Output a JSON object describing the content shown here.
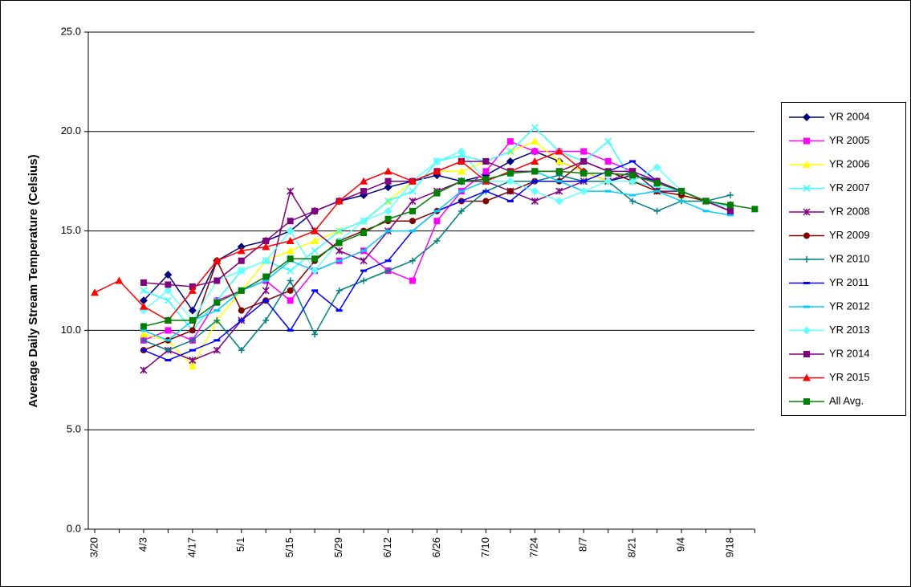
{
  "chart_data": {
    "type": "line",
    "y_label": "Average Daily Stream Temperature (Celsius)",
    "categories": [
      "3/20",
      null,
      "4/3",
      null,
      "4/17",
      null,
      "5/1",
      null,
      "5/15",
      null,
      "5/29",
      null,
      "6/12",
      null,
      "6/26",
      null,
      "7/10",
      null,
      "7/24",
      null,
      "8/7",
      null,
      "8/21",
      null,
      "9/4",
      null,
      "9/18",
      null
    ],
    "ylim": [
      0,
      25
    ],
    "yticks": [
      {
        "value": 0,
        "label": "0.0"
      },
      {
        "value": 5,
        "label": "5.0"
      },
      {
        "value": 10,
        "label": "10.0"
      },
      {
        "value": 15,
        "label": "15.0"
      },
      {
        "value": 20,
        "label": "20.0"
      },
      {
        "value": 25,
        "label": "25.0"
      }
    ],
    "grid": true,
    "legend": "right",
    "series": [
      {
        "name": "YR 2004",
        "color": "#000080",
        "marker": "diamond",
        "values": [
          null,
          null,
          11.5,
          12.8,
          11.0,
          13.5,
          14.2,
          14.5,
          15.0,
          16.0,
          16.5,
          16.8,
          17.2,
          17.5,
          17.8,
          17.5,
          17.8,
          18.5,
          19.0,
          18.5,
          18.0,
          17.5,
          17.8,
          17.5,
          17.0,
          16.5,
          16.3,
          null
        ]
      },
      {
        "name": "YR 2005",
        "color": "#ff00ff",
        "marker": "square",
        "values": [
          null,
          null,
          9.5,
          10.0,
          9.5,
          11.5,
          12.0,
          12.5,
          11.5,
          13.0,
          13.5,
          14.0,
          13.0,
          12.5,
          15.5,
          17.0,
          18.0,
          19.5,
          19.0,
          19.0,
          19.0,
          18.5,
          18.0,
          17.5,
          17.0,
          16.5,
          16.0,
          null
        ]
      },
      {
        "name": "YR 2006",
        "color": "#ffff00",
        "marker": "triangle",
        "values": [
          null,
          null,
          9.8,
          9.5,
          8.2,
          10.5,
          12.0,
          13.5,
          14.0,
          14.5,
          15.0,
          15.5,
          16.5,
          17.5,
          18.0,
          18.0,
          18.5,
          19.0,
          19.5,
          18.5,
          18.0,
          17.5,
          17.5,
          17.0,
          16.8,
          16.5,
          16.2,
          null
        ]
      },
      {
        "name": "YR 2007",
        "color": "#33ffff",
        "marker": "x",
        "values": [
          null,
          null,
          12.0,
          11.5,
          10.0,
          11.5,
          13.0,
          13.5,
          13.0,
          14.0,
          15.0,
          15.5,
          16.5,
          17.0,
          18.5,
          18.8,
          18.5,
          19.0,
          20.2,
          19.0,
          18.5,
          19.5,
          17.5,
          17.2,
          17.0,
          16.5,
          16.0,
          null
        ]
      },
      {
        "name": "YR 2008",
        "color": "#800080",
        "marker": "star",
        "values": [
          null,
          null,
          8.0,
          9.0,
          8.5,
          9.0,
          10.5,
          12.0,
          17.0,
          15.0,
          14.0,
          13.5,
          15.0,
          16.5,
          17.0,
          17.5,
          17.5,
          17.0,
          16.5,
          17.0,
          17.5,
          17.5,
          18.0,
          17.0,
          17.0,
          16.5,
          16.0,
          null
        ]
      },
      {
        "name": "YR 2009",
        "color": "#800000",
        "marker": "circle",
        "values": [
          null,
          null,
          9.0,
          9.5,
          10.0,
          13.5,
          11.0,
          11.5,
          12.0,
          13.5,
          14.5,
          15.0,
          15.5,
          15.5,
          16.0,
          16.5,
          16.5,
          17.0,
          17.5,
          17.5,
          18.5,
          18.0,
          17.5,
          17.0,
          16.8,
          16.5,
          16.2,
          null
        ]
      },
      {
        "name": "YR 2010",
        "color": "#008080",
        "marker": "plus",
        "values": [
          null,
          null,
          9.5,
          9.0,
          9.5,
          10.5,
          9.0,
          10.5,
          12.5,
          9.8,
          12.0,
          12.5,
          13.0,
          13.5,
          14.5,
          16.0,
          17.0,
          17.5,
          17.5,
          17.8,
          17.5,
          17.5,
          16.5,
          16.0,
          16.5,
          16.5,
          16.8,
          null
        ]
      },
      {
        "name": "YR 2011",
        "color": "#0000ff",
        "marker": "dash",
        "values": [
          null,
          null,
          9.0,
          8.5,
          9.0,
          9.5,
          10.5,
          11.5,
          10.0,
          12.0,
          11.0,
          13.0,
          13.5,
          15.0,
          16.0,
          16.5,
          17.0,
          16.5,
          17.5,
          17.5,
          17.5,
          18.0,
          18.5,
          17.5,
          17.0,
          16.5,
          16.0,
          null
        ]
      },
      {
        "name": "YR 2012",
        "color": "#00ccff",
        "marker": "dash",
        "values": [
          null,
          null,
          10.0,
          9.5,
          10.5,
          11.0,
          12.0,
          12.5,
          13.5,
          13.0,
          13.5,
          14.0,
          15.0,
          15.0,
          16.0,
          17.0,
          17.5,
          18.0,
          18.0,
          17.5,
          17.0,
          17.0,
          16.8,
          17.0,
          16.5,
          16.0,
          15.8,
          null
        ]
      },
      {
        "name": "YR 2013",
        "color": "#66ffff",
        "marker": "diamond",
        "values": [
          null,
          null,
          11.0,
          12.0,
          10.5,
          12.5,
          13.0,
          13.5,
          15.0,
          13.0,
          14.5,
          15.5,
          16.0,
          17.5,
          18.5,
          19.0,
          17.5,
          17.5,
          17.0,
          16.5,
          17.0,
          17.5,
          17.5,
          18.2,
          17.0,
          16.5,
          16.2,
          null
        ]
      },
      {
        "name": "YR 2014",
        "color": "#800080",
        "marker": "square",
        "values": [
          null,
          null,
          12.4,
          12.3,
          12.2,
          12.5,
          13.5,
          14.5,
          15.5,
          16.0,
          16.5,
          17.0,
          17.5,
          17.5,
          18.0,
          18.5,
          18.5,
          18.0,
          18.0,
          18.0,
          18.5,
          18.0,
          18.0,
          17.5,
          17.0,
          16.5,
          16.0,
          null
        ]
      },
      {
        "name": "YR 2015",
        "color": "#ff0000",
        "marker": "triangle",
        "values": [
          11.9,
          12.5,
          11.2,
          10.5,
          12.0,
          13.5,
          14.0,
          14.2,
          14.5,
          15.0,
          16.5,
          17.5,
          18.0,
          17.5,
          18.0,
          18.5,
          17.5,
          18.0,
          18.5,
          19.0,
          18.0,
          null,
          null,
          null,
          null,
          null,
          null,
          null
        ]
      },
      {
        "name": "All Avg.",
        "color": "#008000",
        "marker": "square",
        "values": [
          null,
          null,
          10.2,
          10.5,
          10.5,
          11.4,
          12.0,
          12.7,
          13.6,
          13.6,
          14.4,
          14.9,
          15.6,
          16.0,
          16.9,
          17.5,
          17.6,
          17.9,
          18.0,
          18.0,
          17.9,
          17.9,
          17.8,
          17.4,
          17.0,
          16.5,
          16.3,
          16.1
        ]
      }
    ]
  }
}
